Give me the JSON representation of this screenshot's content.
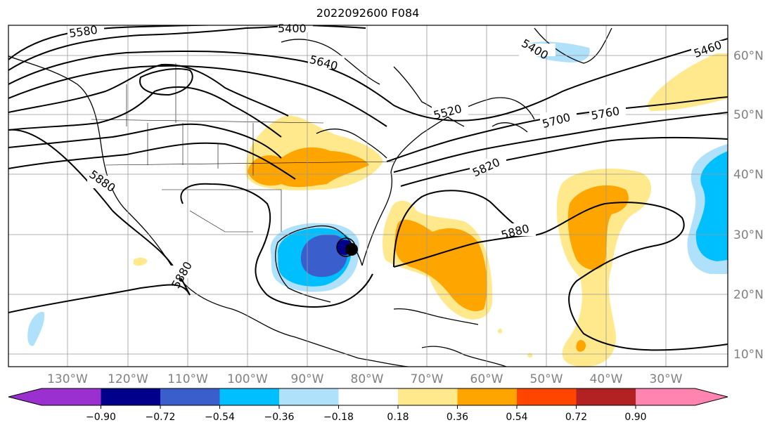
{
  "title": "2022092600 F084",
  "colors": {
    "n090": "#9b30d0",
    "n072": "#00008b",
    "n054": "#3a5fcd",
    "n036": "#00bfff",
    "n018": "#afe1fa",
    "zero": "#ffffff",
    "p018": "#ffe98c",
    "p036": "#ffa500",
    "p054": "#ff4500",
    "p072": "#b22222",
    "p090": "#ff85b0"
  },
  "lon_labels": [
    "130°W",
    "120°W",
    "110°W",
    "100°W",
    "90°W",
    "80°W",
    "70°W",
    "60°W",
    "50°W",
    "40°W",
    "30°W"
  ],
  "lat_labels": [
    "60°N",
    "50°N",
    "40°N",
    "30°N",
    "20°N",
    "10°N"
  ],
  "colorbar": {
    "ticks": [
      "−0.90",
      "−0.72",
      "−0.54",
      "−0.36",
      "−0.18",
      "0.18",
      "0.36",
      "0.54",
      "0.72",
      "0.90"
    ]
  },
  "contour_labels": [
    "5580",
    "5400",
    "5640",
    "5400",
    "5460",
    "5520",
    "5700",
    "5760",
    "5820",
    "5880",
    "5880",
    "5880"
  ]
}
